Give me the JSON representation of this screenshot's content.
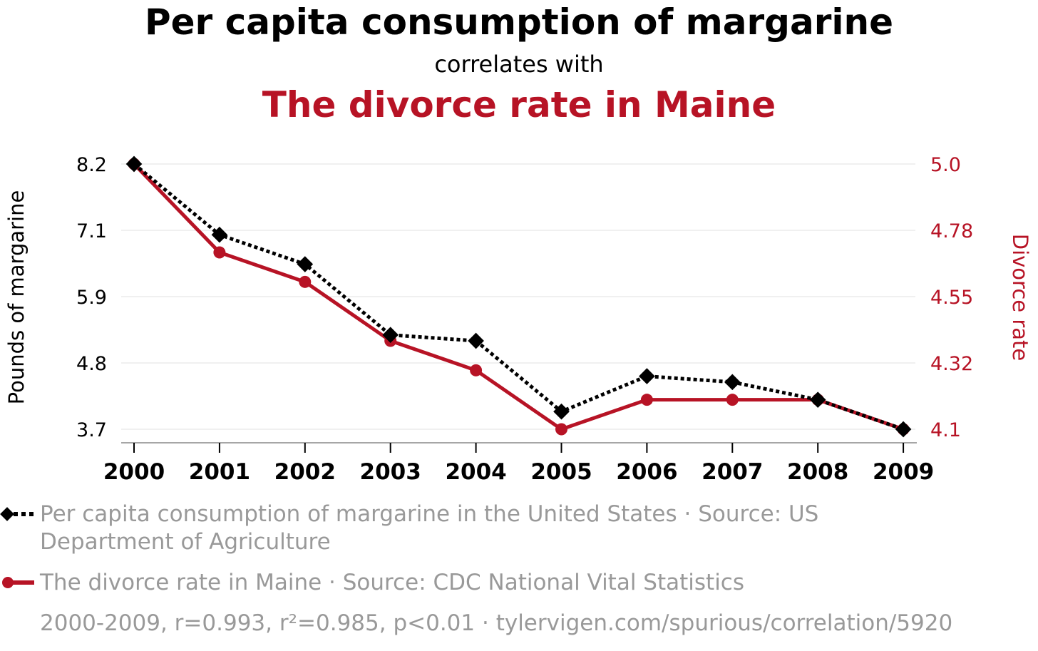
{
  "header": {
    "title": "Per capita consumption of margarine",
    "subtitle": "correlates with",
    "title2": "The divorce rate in Maine"
  },
  "legend": {
    "series1_line1": "Per capita consumption of margarine in the United States · Source: US",
    "series1_line2": "Department of Agriculture",
    "series2": "The divorce rate in Maine · Source: CDC National Vital Statistics",
    "footer": "2000-2009, r=0.993, r²=0.985, p<0.01 · tylervigen.com/spurious/correlation/5920"
  },
  "colors": {
    "series1": "#000000",
    "series2": "#b71325",
    "legend_text": "#999999",
    "grid": "#f0f0f0"
  },
  "chart_data": {
    "type": "line",
    "categories": [
      "2000",
      "2001",
      "2002",
      "2003",
      "2004",
      "2005",
      "2006",
      "2007",
      "2008",
      "2009"
    ],
    "y_left": {
      "label": "Pounds of margarine",
      "ticks": [
        "8.2",
        "7.1",
        "5.9",
        "4.8",
        "3.7"
      ],
      "ylim": [
        3.7,
        8.2
      ]
    },
    "y_right": {
      "label": "Divorce rate",
      "ticks": [
        "5.0",
        "4.78",
        "4.55",
        "4.32",
        "4.1"
      ],
      "ylim": [
        4.1,
        5.0
      ]
    },
    "series": [
      {
        "axis": "left",
        "style": "dotted-diamond",
        "values": [
          8.2,
          7.0,
          6.5,
          5.3,
          5.2,
          4.0,
          4.6,
          4.5,
          4.2,
          3.7
        ]
      },
      {
        "axis": "right",
        "style": "solid-circle",
        "values": [
          5.0,
          4.7,
          4.6,
          4.4,
          4.3,
          4.1,
          4.2,
          4.2,
          4.2,
          4.1
        ]
      }
    ],
    "grid": true,
    "legend_position": "bottom"
  }
}
